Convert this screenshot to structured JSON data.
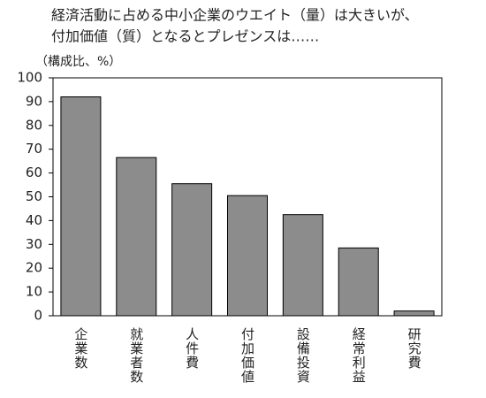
{
  "chart_data": {
    "type": "bar",
    "title": [
      "経済活動に占める中小企業のウエイト（量）は大きいが、",
      "付加価値（質）となるとプレゼンスは……"
    ],
    "y_label": "（構成比、%）",
    "categories": [
      "企業数",
      "就業者数",
      "人件費",
      "付加価値",
      "設備投資",
      "経常利益",
      "研究費"
    ],
    "values": [
      92,
      66.5,
      55.5,
      50.5,
      42.5,
      28.5,
      2
    ],
    "color": "#8c8c8c",
    "ylim": [
      0,
      100
    ],
    "yticks": [
      0,
      10,
      20,
      30,
      40,
      50,
      60,
      70,
      80,
      90,
      100
    ],
    "grid": false
  }
}
